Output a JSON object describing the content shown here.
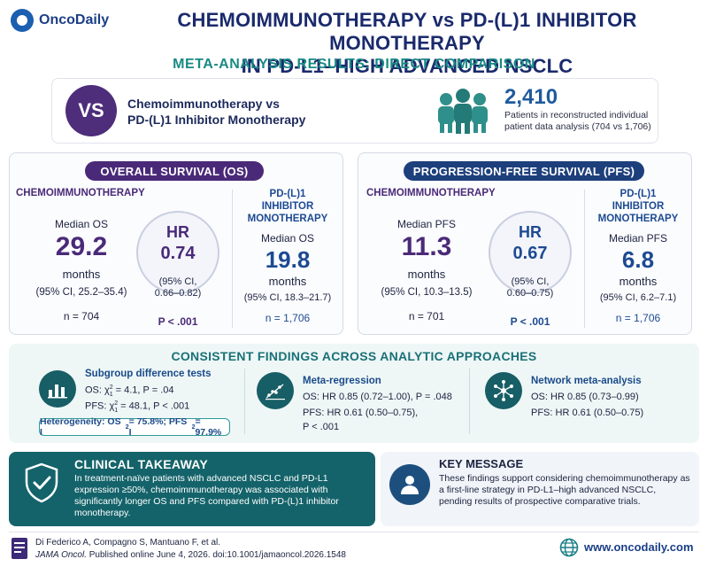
{
  "brand": {
    "name": "OncoDaily",
    "website": "www.oncodaily.com",
    "icon": "globe-icon"
  },
  "title": {
    "line1": "CHEMOIMMUNOTHERAPY vs PD-(L)1 INHIBITOR MONOTHERAPY",
    "line2": "IN PD-L1–HIGH ADVANCED NSCLC"
  },
  "subtitle": "META-ANALYSIS RESULTS: DIRECT COMPARISON",
  "comparison": {
    "badge": "VS",
    "label_line1": "Chemoimmunotherapy vs",
    "label_line2": "PD-(L)1 Inhibitor Monotherapy",
    "patients_total": "2,410",
    "patients_desc": "Patients in reconstructed individual patient data analysis (704 vs 1,706)"
  },
  "os": {
    "title": "OVERALL SURVIVAL (OS)",
    "chemo": {
      "heading": "CHEMOIMMUNOTHERAPY",
      "label": "Median OS",
      "value": "29.2",
      "unit": "months",
      "ci": "(95% CI, 25.2–35.4)",
      "n": "n = 704"
    },
    "hr": {
      "label": "HR",
      "value": "0.74",
      "ci_line1": "(95% CI,",
      "ci_line2": "0.66–0.82)",
      "p": "P < .001"
    },
    "mono": {
      "heading_line1": "PD-(L)1",
      "heading_line2": "INHIBITOR",
      "heading_line3": "MONOTHERAPY",
      "label": "Median OS",
      "value": "19.8",
      "unit": "months",
      "ci": "(95% CI, 18.3–21.7)",
      "n": "n = 1,706"
    }
  },
  "pfs": {
    "title": "PROGRESSION-FREE SURVIVAL (PFS)",
    "chemo": {
      "heading": "CHEMOIMMUNOTHERAPY",
      "label": "Median PFS",
      "value": "11.3",
      "unit": "months",
      "ci": "(95% CI, 10.3–13.5)",
      "n": "n = 701"
    },
    "hr": {
      "label": "HR",
      "value": "0.67",
      "ci_line1": "(95% CI,",
      "ci_line2": "0.60–0.75)",
      "p": "P < .001"
    },
    "mono": {
      "heading_line1": "PD-(L)1",
      "heading_line2": "INHIBITOR",
      "heading_line3": "MONOTHERAPY",
      "label": "Median PFS",
      "value": "6.8",
      "unit": "months",
      "ci": "(95% CI, 6.2–7.1)",
      "n": "n = 1,706"
    }
  },
  "findings": {
    "title": "CONSISTENT FINDINGS ACROSS ANALYTIC APPROACHES",
    "subgroup": {
      "heading": "Subgroup difference tests",
      "os_prefix": "OS: χ",
      "os_sup": "2",
      "os_sub": "1",
      "os_rest": " = 4.1, P = .04",
      "pfs_prefix": "PFS: χ",
      "pfs_sup": "2",
      "pfs_sub": "1",
      "pfs_rest": " = 48.1, P < .001",
      "heterogeneity_os": "Heterogeneity: OS I",
      "het_sup1": "2",
      "heterogeneity_mid": " = 75.8%; PFS I",
      "het_sup2": "2",
      "heterogeneity_end": " = 97.9%"
    },
    "meta_regression": {
      "heading": "Meta-regression",
      "os": "OS: HR 0.85 (0.72–1.00), P = .048",
      "pfs_line1": "PFS: HR 0.61 (0.50–0.75),",
      "pfs_line2": "P < .001"
    },
    "network": {
      "heading": "Network meta-analysis",
      "os": "OS: HR 0.85 (0.73–0.99)",
      "pfs": "PFS: HR 0.61 (0.50–0.75)"
    }
  },
  "takeaway": {
    "title": "CLINICAL TAKEAWAY",
    "body": "In treatment-naïve patients with advanced NSCLC and PD-L1 expression ≥50%, chemoimmunotherapy was associated with significantly longer OS and PFS compared with PD-(L)1 inhibitor monotherapy."
  },
  "key_message": {
    "title": "KEY MESSAGE",
    "body": "These findings support considering chemoimmunotherapy as a first-line strategy in PD-L1–high advanced NSCLC, pending results of prospective comparative trials."
  },
  "citation": {
    "authors": "Di Federico A, Compagno S, Mantuano F, et al.",
    "journal": "JAMA Oncol.",
    "details": " Published online June 4, 2026. doi:10.1001/jamaoncol.2026.1548"
  },
  "colors": {
    "purple": "#4a2a78",
    "navy": "#1d3f7c",
    "teal": "#14636a",
    "accent_teal": "#1a8a85"
  }
}
